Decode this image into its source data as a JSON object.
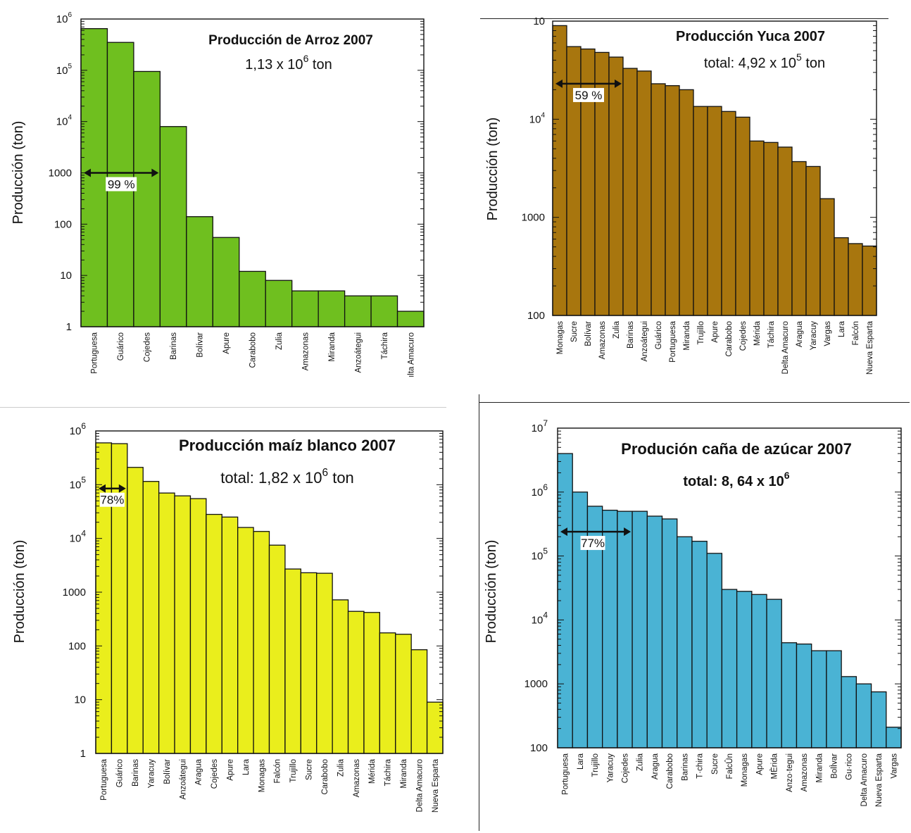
{
  "chart_data": [
    {
      "type": "bar",
      "title": "Producción de Arroz 2007",
      "total": {
        "prefix": "1,13 x 10",
        "exp": "6",
        "suffix": " ton"
      },
      "ylabel": "Producción (ton)",
      "yscale": "log",
      "ylim": [
        1,
        1000000
      ],
      "yticks": [
        {
          "v": 1,
          "label": "1"
        },
        {
          "v": 10,
          "label": "10"
        },
        {
          "v": 100,
          "label": "100"
        },
        {
          "v": 1000,
          "label": "1000"
        },
        {
          "v": 10000,
          "base": "10",
          "exp": "4"
        },
        {
          "v": 100000,
          "base": "10",
          "exp": "5"
        },
        {
          "v": 1000000,
          "base": "10",
          "exp": "6"
        }
      ],
      "categories": [
        "Portuguesa",
        "Guárico",
        "Cojedes",
        "Barinas",
        "Bolívar",
        "Apure",
        "Carabobo",
        "Zulia",
        "Amazonas",
        "Miranda",
        "Anzoátegui",
        "Táchira",
        "ılta Amacuro"
      ],
      "values": [
        650000,
        350000,
        95000,
        8000,
        140,
        55,
        12,
        8,
        5,
        5,
        4,
        4,
        2
      ],
      "bar_color": "#6fbf1f",
      "annotation": {
        "label": "99 %",
        "from_bar": 0,
        "to_bar": 2,
        "value": 1000
      }
    },
    {
      "type": "bar",
      "title": "Producción Yuca 2007",
      "total": {
        "prefix": "total: 4,92 x 10",
        "exp": "5",
        "suffix": " ton"
      },
      "ylabel": "Producción (ton)",
      "yscale": "log",
      "ylim": [
        100,
        100000
      ],
      "yticks": [
        {
          "v": 100,
          "label": "100"
        },
        {
          "v": 1000,
          "label": "1000"
        },
        {
          "v": 10000,
          "base": "10",
          "exp": "4"
        },
        {
          "v": 100000,
          "base": "10",
          "exp": ""
        }
      ],
      "categories": [
        "Monagas",
        "Sucre",
        "Bolívar",
        "Amazonas",
        "Zulia",
        "Barinas",
        "Anzoátegui",
        "Guárico",
        "Portuguesa",
        "Miranda",
        "Trujillo",
        "Apure",
        "Carabobo",
        "Cojedes",
        "Mérida",
        "Táchira",
        "Delta Amacuro",
        "Aragua",
        "Yaracuy",
        "Vargas",
        "Lara",
        "Falcón",
        "Nueva Esparta"
      ],
      "values": [
        90000,
        55000,
        52000,
        48000,
        43000,
        33000,
        31000,
        23000,
        22000,
        20000,
        13500,
        13500,
        12000,
        10500,
        6000,
        5800,
        5200,
        3700,
        3300,
        1550,
        620,
        540,
        510
      ],
      "bar_color": "#a8760e",
      "annotation": {
        "label": "59 %",
        "from_bar": 0,
        "to_bar": 4,
        "value": 23000
      }
    },
    {
      "type": "bar",
      "title": "Producción maíz blanco 2007",
      "total": {
        "prefix": "total: 1,82 x 10",
        "exp": "6",
        "suffix": " ton"
      },
      "ylabel": "Producción (ton)",
      "yscale": "log",
      "ylim": [
        1,
        1000000
      ],
      "yticks": [
        {
          "v": 1,
          "label": "1"
        },
        {
          "v": 10,
          "label": "10"
        },
        {
          "v": 100,
          "label": "100"
        },
        {
          "v": 1000,
          "label": "1000"
        },
        {
          "v": 10000,
          "base": "10",
          "exp": "4"
        },
        {
          "v": 100000,
          "base": "10",
          "exp": "5"
        },
        {
          "v": 1000000,
          "base": "10",
          "exp": "6"
        }
      ],
      "categories": [
        "Portuguesa",
        "Guárico",
        "Barinas",
        "Yaracuy",
        "Bolívar",
        "Anzoátegui",
        "Aragua",
        "Cojedes",
        "Apure",
        "Lara",
        "Monagas",
        "Falcón",
        "Trujillo",
        "Sucre",
        "Carabobo",
        "Zulia",
        "Amazonas",
        "Mérida",
        "Táchira",
        "Miranda",
        "Delta Amacuro",
        "Nueva Esparta"
      ],
      "values": [
        600000,
        580000,
        210000,
        115000,
        70000,
        62000,
        55000,
        28000,
        25000,
        16000,
        13500,
        7500,
        2700,
        2300,
        2250,
        720,
        440,
        420,
        175,
        165,
        85,
        9
      ],
      "bar_color": "#eaee1c",
      "annotation": {
        "label": "78%",
        "from_bar": 0,
        "to_bar": 1,
        "value": 85000
      }
    },
    {
      "type": "bar",
      "title": "Produción caña de azúcar 2007",
      "total": {
        "prefix": "total: 8, 64 x 10",
        "exp": "6",
        "suffix": ""
      },
      "ylabel": "Producción (ton)",
      "yscale": "log",
      "ylim": [
        100,
        10000000
      ],
      "yticks": [
        {
          "v": 100,
          "label": "100"
        },
        {
          "v": 1000,
          "label": "1000"
        },
        {
          "v": 10000,
          "base": "10",
          "exp": "4"
        },
        {
          "v": 100000,
          "base": "10",
          "exp": "5"
        },
        {
          "v": 1000000,
          "base": "10",
          "exp": "6"
        },
        {
          "v": 10000000,
          "base": "10",
          "exp": "7"
        }
      ],
      "categories": [
        "Portuguesa",
        "Lara",
        "Trujillo",
        "Yaracuy",
        "Cojedes",
        "Zulia",
        "Aragua",
        "Carabobo",
        "Barinas",
        "T·chira",
        "Sucre",
        "FalcÛn",
        "Monagas",
        "Apure",
        "MÈrida",
        "Anzo·tegui",
        "Amazonas",
        "Miranda",
        "BolÌvar",
        "Gu·rico",
        "Delta Amacuro",
        "Nueva Esparta",
        "Vargas"
      ],
      "values": [
        4000000,
        1000000,
        600000,
        520000,
        500000,
        500000,
        420000,
        380000,
        200000,
        170000,
        110000,
        30000,
        28000,
        25000,
        21000,
        4400,
        4200,
        3300,
        3300,
        1300,
        1000,
        750,
        210
      ],
      "bar_color": "#4ab3d4",
      "annotation": {
        "label": "77%",
        "from_bar": 0,
        "to_bar": 4,
        "value": 240000
      }
    }
  ]
}
